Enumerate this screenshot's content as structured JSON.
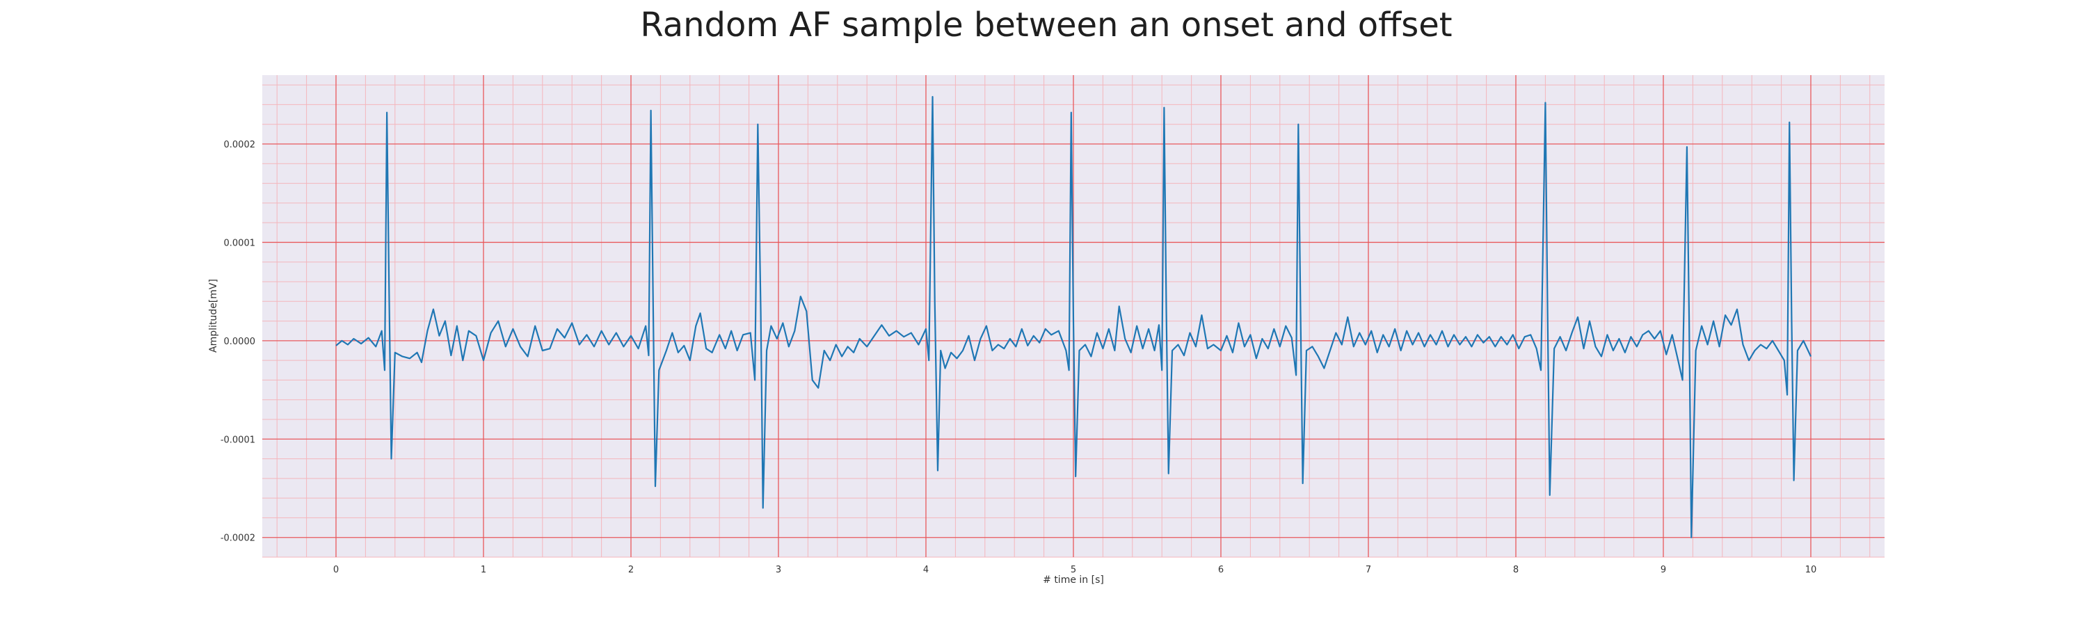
{
  "chart_data": {
    "type": "line",
    "title": "Random AF sample between an onset and offset",
    "xlabel": "# time in [s]",
    "ylabel": "Amplitude[mV]",
    "xlim": [
      -0.5,
      10.5
    ],
    "ylim": [
      -0.00022,
      0.00027
    ],
    "xticks": [
      0,
      1,
      2,
      3,
      4,
      5,
      6,
      7,
      8,
      9,
      10
    ],
    "xtick_labels": [
      "0",
      "1",
      "2",
      "3",
      "4",
      "5",
      "6",
      "7",
      "8",
      "9",
      "10"
    ],
    "yticks": [
      -0.0002,
      -0.0001,
      0.0,
      0.0001,
      0.0002
    ],
    "ytick_labels": [
      "-0.0002",
      "-0.0001",
      "0.0000",
      "0.0001",
      "0.0002"
    ],
    "grid": true,
    "grid_style": "ecg paper: major red lines at ticks, minor pink lines",
    "series": [
      {
        "color": "#1f77b4",
        "points": [
          [
            0.0,
            -5e-06
          ],
          [
            0.04,
            0.0
          ],
          [
            0.08,
            -4e-06
          ],
          [
            0.12,
            2e-06
          ],
          [
            0.17,
            -3e-06
          ],
          [
            0.22,
            3e-06
          ],
          [
            0.27,
            -6e-06
          ],
          [
            0.31,
            1e-05
          ],
          [
            0.33,
            -3e-05
          ],
          [
            0.345,
            0.000232
          ],
          [
            0.36,
            5e-05
          ],
          [
            0.375,
            -0.00012
          ],
          [
            0.4,
            -1.2e-05
          ],
          [
            0.45,
            -1.6e-05
          ],
          [
            0.5,
            -1.8e-05
          ],
          [
            0.55,
            -1.2e-05
          ],
          [
            0.58,
            -2.2e-05
          ],
          [
            0.62,
            1e-05
          ],
          [
            0.66,
            3.2e-05
          ],
          [
            0.7,
            5e-06
          ],
          [
            0.74,
            2e-05
          ],
          [
            0.78,
            -1.5e-05
          ],
          [
            0.82,
            1.5e-05
          ],
          [
            0.86,
            -2e-05
          ],
          [
            0.9,
            1e-05
          ],
          [
            0.95,
            5e-06
          ],
          [
            1.0,
            -2e-05
          ],
          [
            1.05,
            8e-06
          ],
          [
            1.1,
            2e-05
          ],
          [
            1.15,
            -6e-06
          ],
          [
            1.2,
            1.2e-05
          ],
          [
            1.25,
            -6e-06
          ],
          [
            1.3,
            -1.6e-05
          ],
          [
            1.35,
            1.5e-05
          ],
          [
            1.4,
            -1e-05
          ],
          [
            1.45,
            -8e-06
          ],
          [
            1.5,
            1.2e-05
          ],
          [
            1.55,
            3e-06
          ],
          [
            1.6,
            1.8e-05
          ],
          [
            1.65,
            -4e-06
          ],
          [
            1.7,
            6e-06
          ],
          [
            1.75,
            -6e-06
          ],
          [
            1.8,
            1e-05
          ],
          [
            1.85,
            -4e-06
          ],
          [
            1.9,
            8e-06
          ],
          [
            1.95,
            -6e-06
          ],
          [
            2.0,
            5e-06
          ],
          [
            2.05,
            -8e-06
          ],
          [
            2.1,
            1.5e-05
          ],
          [
            2.12,
            -1.5e-05
          ],
          [
            2.135,
            0.000234
          ],
          [
            2.15,
            4e-05
          ],
          [
            2.165,
            -0.000148
          ],
          [
            2.19,
            -3e-05
          ],
          [
            2.24,
            -1e-05
          ],
          [
            2.28,
            8e-06
          ],
          [
            2.32,
            -1.2e-05
          ],
          [
            2.36,
            -5e-06
          ],
          [
            2.4,
            -2e-05
          ],
          [
            2.44,
            1.5e-05
          ],
          [
            2.47,
            2.8e-05
          ],
          [
            2.51,
            -8e-06
          ],
          [
            2.55,
            -1.2e-05
          ],
          [
            2.6,
            6e-06
          ],
          [
            2.64,
            -8e-06
          ],
          [
            2.68,
            1e-05
          ],
          [
            2.72,
            -1e-05
          ],
          [
            2.76,
            6e-06
          ],
          [
            2.81,
            8e-06
          ],
          [
            2.84,
            -4e-05
          ],
          [
            2.86,
            0.00022
          ],
          [
            2.88,
            3e-05
          ],
          [
            2.895,
            -0.00017
          ],
          [
            2.92,
            -1e-05
          ],
          [
            2.95,
            1.5e-05
          ],
          [
            2.99,
            2e-06
          ],
          [
            3.03,
            1.8e-05
          ],
          [
            3.07,
            -6e-06
          ],
          [
            3.11,
            1e-05
          ],
          [
            3.15,
            4.5e-05
          ],
          [
            3.19,
            3e-05
          ],
          [
            3.23,
            -4e-05
          ],
          [
            3.27,
            -4.8e-05
          ],
          [
            3.31,
            -1e-05
          ],
          [
            3.35,
            -2e-05
          ],
          [
            3.39,
            -4e-06
          ],
          [
            3.43,
            -1.6e-05
          ],
          [
            3.47,
            -6e-06
          ],
          [
            3.51,
            -1.2e-05
          ],
          [
            3.55,
            2e-06
          ],
          [
            3.6,
            -6e-06
          ],
          [
            3.65,
            5e-06
          ],
          [
            3.7,
            1.6e-05
          ],
          [
            3.75,
            5e-06
          ],
          [
            3.8,
            1e-05
          ],
          [
            3.85,
            4e-06
          ],
          [
            3.9,
            8e-06
          ],
          [
            3.95,
            -4e-06
          ],
          [
            4.0,
            1.2e-05
          ],
          [
            4.02,
            -2e-05
          ],
          [
            4.045,
            0.000248
          ],
          [
            4.06,
            4e-05
          ],
          [
            4.08,
            -0.000132
          ],
          [
            4.1,
            -1e-05
          ],
          [
            4.13,
            -2.8e-05
          ],
          [
            4.17,
            -1.2e-05
          ],
          [
            4.21,
            -1.8e-05
          ],
          [
            4.25,
            -1e-05
          ],
          [
            4.29,
            5e-06
          ],
          [
            4.33,
            -2e-05
          ],
          [
            4.37,
            2e-06
          ],
          [
            4.41,
            1.5e-05
          ],
          [
            4.45,
            -1e-05
          ],
          [
            4.49,
            -4e-06
          ],
          [
            4.53,
            -8e-06
          ],
          [
            4.57,
            2e-06
          ],
          [
            4.61,
            -6e-06
          ],
          [
            4.65,
            1.2e-05
          ],
          [
            4.69,
            -5e-06
          ],
          [
            4.73,
            5e-06
          ],
          [
            4.77,
            -2e-06
          ],
          [
            4.81,
            1.2e-05
          ],
          [
            4.85,
            6e-06
          ],
          [
            4.9,
            1e-05
          ],
          [
            4.95,
            -1e-05
          ],
          [
            4.97,
            -3e-05
          ],
          [
            4.985,
            0.000232
          ],
          [
            5.0,
            2e-05
          ],
          [
            5.015,
            -0.000138
          ],
          [
            5.04,
            -1e-05
          ],
          [
            5.08,
            -4e-06
          ],
          [
            5.12,
            -1.6e-05
          ],
          [
            5.16,
            8e-06
          ],
          [
            5.2,
            -8e-06
          ],
          [
            5.24,
            1.2e-05
          ],
          [
            5.28,
            -1e-05
          ],
          [
            5.31,
            3.5e-05
          ],
          [
            5.35,
            2e-06
          ],
          [
            5.39,
            -1.2e-05
          ],
          [
            5.43,
            1.5e-05
          ],
          [
            5.47,
            -8e-06
          ],
          [
            5.51,
            1.2e-05
          ],
          [
            5.55,
            -1e-05
          ],
          [
            5.58,
            1.6e-05
          ],
          [
            5.6,
            -3e-05
          ],
          [
            5.615,
            0.000237
          ],
          [
            5.63,
            3e-05
          ],
          [
            5.645,
            -0.000135
          ],
          [
            5.67,
            -1e-05
          ],
          [
            5.71,
            -4e-06
          ],
          [
            5.75,
            -1.5e-05
          ],
          [
            5.79,
            8e-06
          ],
          [
            5.83,
            -6e-06
          ],
          [
            5.87,
            2.6e-05
          ],
          [
            5.91,
            -8e-06
          ],
          [
            5.95,
            -4e-06
          ],
          [
            6.0,
            -1e-05
          ],
          [
            6.04,
            5e-06
          ],
          [
            6.08,
            -1.2e-05
          ],
          [
            6.12,
            1.8e-05
          ],
          [
            6.16,
            -6e-06
          ],
          [
            6.2,
            6e-06
          ],
          [
            6.24,
            -1.8e-05
          ],
          [
            6.28,
            2e-06
          ],
          [
            6.32,
            -8e-06
          ],
          [
            6.36,
            1.2e-05
          ],
          [
            6.4,
            -6e-06
          ],
          [
            6.44,
            1.5e-05
          ],
          [
            6.48,
            3e-06
          ],
          [
            6.51,
            -3.5e-05
          ],
          [
            6.525,
            0.00022
          ],
          [
            6.54,
            3e-05
          ],
          [
            6.555,
            -0.000145
          ],
          [
            6.58,
            -1e-05
          ],
          [
            6.62,
            -6e-06
          ],
          [
            6.66,
            -1.6e-05
          ],
          [
            6.7,
            -2.8e-05
          ],
          [
            6.74,
            -1e-05
          ],
          [
            6.78,
            8e-06
          ],
          [
            6.82,
            -4e-06
          ],
          [
            6.86,
            2.4e-05
          ],
          [
            6.9,
            -6e-06
          ],
          [
            6.94,
            8e-06
          ],
          [
            6.98,
            -4e-06
          ],
          [
            7.02,
            1e-05
          ],
          [
            7.06,
            -1.2e-05
          ],
          [
            7.1,
            6e-06
          ],
          [
            7.14,
            -6e-06
          ],
          [
            7.18,
            1.2e-05
          ],
          [
            7.22,
            -1e-05
          ],
          [
            7.26,
            1e-05
          ],
          [
            7.3,
            -4e-06
          ],
          [
            7.34,
            8e-06
          ],
          [
            7.38,
            -6e-06
          ],
          [
            7.42,
            6e-06
          ],
          [
            7.46,
            -4e-06
          ],
          [
            7.5,
            1e-05
          ],
          [
            7.54,
            -6e-06
          ],
          [
            7.58,
            6e-06
          ],
          [
            7.62,
            -4e-06
          ],
          [
            7.66,
            4e-06
          ],
          [
            7.7,
            -6e-06
          ],
          [
            7.74,
            6e-06
          ],
          [
            7.78,
            -2e-06
          ],
          [
            7.82,
            4e-06
          ],
          [
            7.86,
            -6e-06
          ],
          [
            7.9,
            4e-06
          ],
          [
            7.94,
            -4e-06
          ],
          [
            7.98,
            6e-06
          ],
          [
            8.02,
            -8e-06
          ],
          [
            8.06,
            4e-06
          ],
          [
            8.1,
            6e-06
          ],
          [
            8.14,
            -8e-06
          ],
          [
            8.17,
            -3e-05
          ],
          [
            8.2,
            0.000242
          ],
          [
            8.215,
            3e-05
          ],
          [
            8.23,
            -0.000157
          ],
          [
            8.26,
            -8e-06
          ],
          [
            8.3,
            4e-06
          ],
          [
            8.34,
            -1e-05
          ],
          [
            8.38,
            8e-06
          ],
          [
            8.42,
            2.4e-05
          ],
          [
            8.46,
            -8e-06
          ],
          [
            8.5,
            2e-05
          ],
          [
            8.54,
            -6e-06
          ],
          [
            8.58,
            -1.6e-05
          ],
          [
            8.62,
            6e-06
          ],
          [
            8.66,
            -1e-05
          ],
          [
            8.7,
            2e-06
          ],
          [
            8.74,
            -1.2e-05
          ],
          [
            8.78,
            4e-06
          ],
          [
            8.82,
            -6e-06
          ],
          [
            8.86,
            6e-06
          ],
          [
            8.9,
            1e-05
          ],
          [
            8.94,
            2e-06
          ],
          [
            8.98,
            1e-05
          ],
          [
            9.02,
            -1.4e-05
          ],
          [
            9.06,
            6e-06
          ],
          [
            9.1,
            -2e-05
          ],
          [
            9.13,
            -4e-05
          ],
          [
            9.16,
            0.000197
          ],
          [
            9.175,
            2e-05
          ],
          [
            9.19,
            -0.0002
          ],
          [
            9.22,
            -1e-05
          ],
          [
            9.26,
            1.5e-05
          ],
          [
            9.3,
            -4e-06
          ],
          [
            9.34,
            2e-05
          ],
          [
            9.38,
            -6e-06
          ],
          [
            9.42,
            2.6e-05
          ],
          [
            9.46,
            1.6e-05
          ],
          [
            9.5,
            3.2e-05
          ],
          [
            9.54,
            -4e-06
          ],
          [
            9.58,
            -2e-05
          ],
          [
            9.62,
            -1e-05
          ],
          [
            9.66,
            -4e-06
          ],
          [
            9.7,
            -8e-06
          ],
          [
            9.74,
            0.0
          ],
          [
            9.78,
            -1e-05
          ],
          [
            9.82,
            -2e-05
          ],
          [
            9.84,
            -5.5e-05
          ],
          [
            9.855,
            0.000222
          ],
          [
            9.87,
            2e-05
          ],
          [
            9.885,
            -0.000142
          ],
          [
            9.91,
            -1e-05
          ],
          [
            9.95,
            0.0
          ],
          [
            10.0,
            -1.6e-05
          ]
        ]
      }
    ]
  }
}
